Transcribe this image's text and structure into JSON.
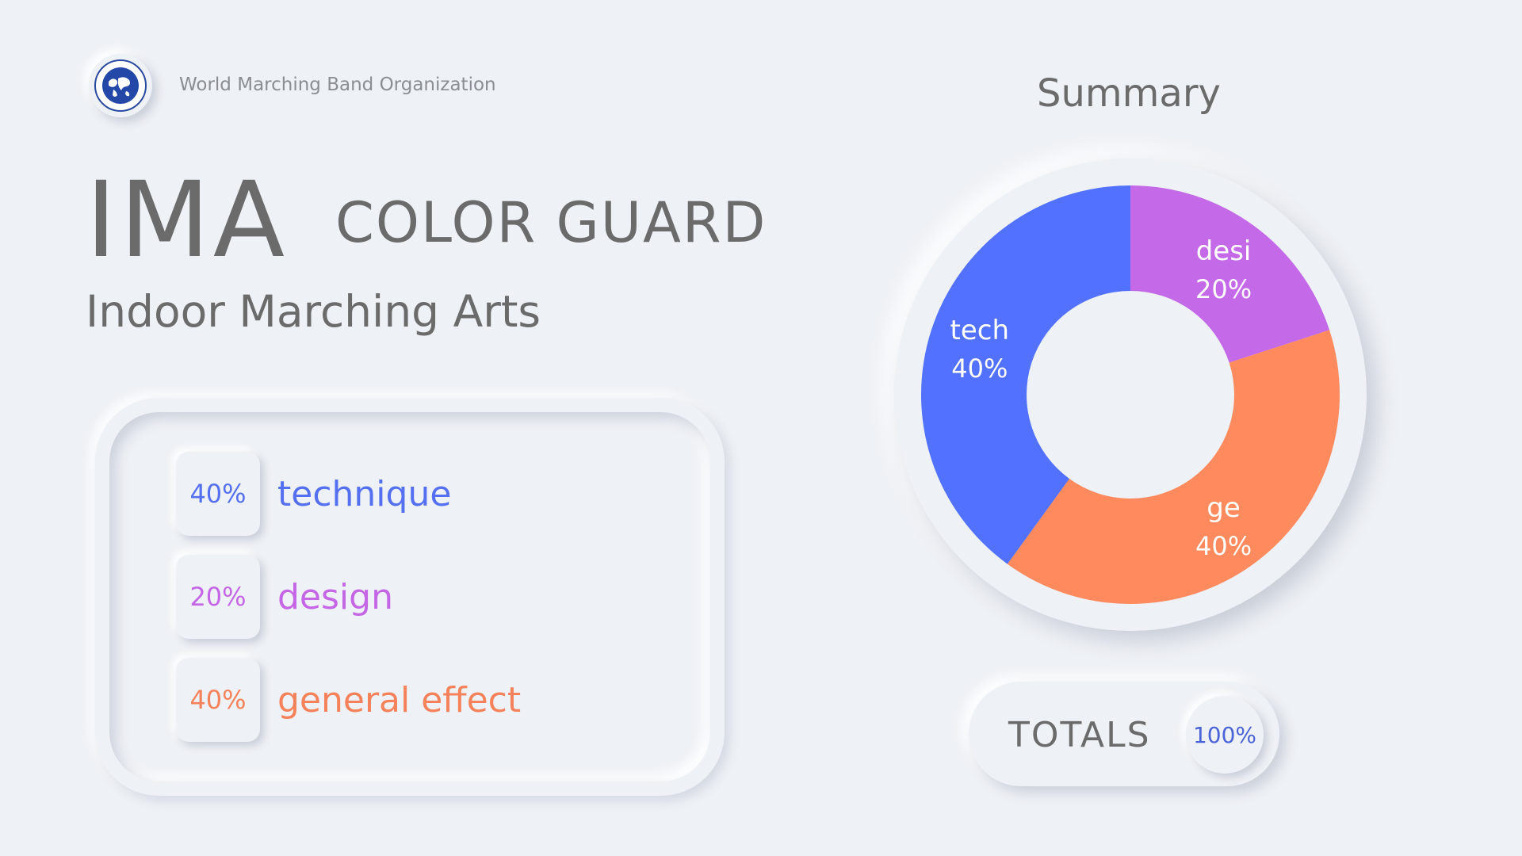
{
  "header": {
    "org_name": "World Marching Band Organization",
    "logo_icon": "globe-seal-icon",
    "title_main": "IMA",
    "title_secondary": "COLOR GUARD",
    "subtitle": "Indoor Marching Arts"
  },
  "legend": [
    {
      "percent": "40%",
      "label": "technique",
      "color": "#5470f0"
    },
    {
      "percent": "20%",
      "label": "design",
      "color": "#c466e6"
    },
    {
      "percent": "40%",
      "label": "general effect",
      "color": "#f5825a"
    }
  ],
  "summary": {
    "title": "Summary",
    "totals_label": "TOTALS",
    "totals_value": "100%"
  },
  "chart_data": {
    "type": "pie",
    "donut": true,
    "categories": [
      "desi",
      "ge",
      "tech"
    ],
    "values": [
      20,
      40,
      40
    ],
    "labels": [
      "20%",
      "40%",
      "40%"
    ],
    "colors": [
      "#c46ae8",
      "#ff8a5e",
      "#5271ff"
    ],
    "title": "Summary"
  }
}
